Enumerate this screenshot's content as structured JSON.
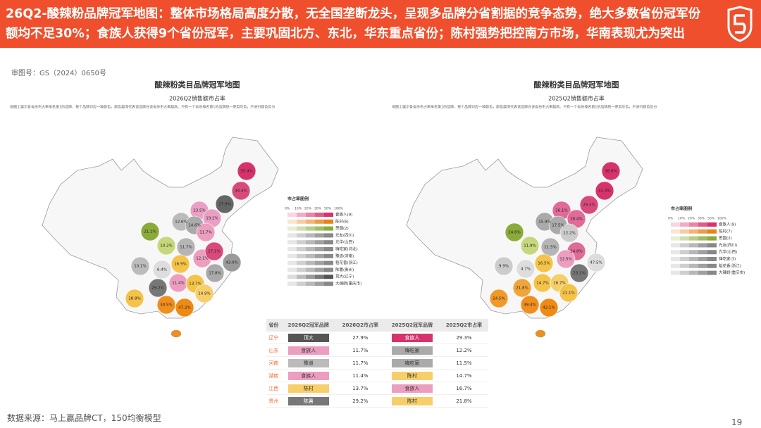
{
  "header": {
    "title": "26Q2-酸辣粉品牌冠军地图：整体市场格局高度分散，无全国垄断龙头，呈现多品牌分省割据的竞争态势，绝大多数省份冠军份额均不足30%；食族人获得9个省份冠军，主要巩固北方、东北，华东重点省份；陈村强势把控南方市场，华南表现尤为突出"
  },
  "review_no": "审图号：GS（2024）0650号",
  "left_map": {
    "title": "酸辣粉类目品牌冠军地图",
    "subtitle": "2026Q2销售额市占率",
    "note": "地图上展示各省份市占率排名第1的品牌，每个品牌对应一种颜色，颜色越深代表该品牌在该省份市占率越高。只有一个省份排名第1的品牌统一使用灰色，不进行颜色区分",
    "region_labels": [
      "35.4%",
      "34.4%",
      "27.9%",
      "23.5%",
      "19.2%",
      "12.6%",
      "14.6%",
      "21.1%",
      "10.2%",
      "11.7%",
      "11.7%",
      "12.1%",
      "27.1%",
      "17.8%",
      "43.0%",
      "10.1%",
      "16.9%",
      "6.4%",
      "11.4%",
      "13.7%",
      "29.2%",
      "14.9%",
      "18.8%",
      "30.5%",
      "47.2%"
    ],
    "legend_title": "市占率图例",
    "legend_scale": [
      "0%",
      "10%",
      "20%",
      "30%",
      "50%",
      "100%"
    ],
    "legend_items": [
      "食族人(9)",
      "陈村(6)",
      "思圆(2)",
      "光友(四川)",
      "光华(山西)",
      "嗨吃家(河北)",
      "豫道(河南)",
      "稻花香(浙江)",
      "陈薯(贵州)",
      "顶大(辽宁)",
      "大辣娇(重庆市)"
    ]
  },
  "right_map": {
    "title": "酸辣粉类目品牌冠军地图",
    "subtitle": "2025Q2销售额市占率",
    "note": "地图上展示各省份市占率排名第1的品牌，每个品牌对应一种颜色，颜色越深代表该品牌在该省份市占率越高。只有一个省份排名第1的品牌统一使用灰色，不进行颜色区分",
    "region_labels": [
      "38.8%",
      "41.3%",
      "29.3%",
      "26.1%",
      "28.4%",
      "15.9%",
      "17.5%",
      "12.2%",
      "24.6%",
      "11.9%",
      "11.5%",
      "24.8%",
      "47.5%",
      "9.9%",
      "4.7%",
      "16.5%",
      "12.5%",
      "23.1%",
      "14.7%",
      "16.7%",
      "21.8%",
      "21.1%",
      "24.5%",
      "39.4%",
      "42.1%"
    ],
    "legend_title": "市占率图例",
    "legend_scale": [
      "0%",
      "10%",
      "20%",
      "30%",
      "50%",
      "100%"
    ],
    "legend_items": [
      "食族人(9)",
      "陈村(7)",
      "思圆(2)",
      "光友(四川)",
      "光华(山西)",
      "嗨吃家(3)",
      "稻花香(浙江)",
      "大辣娇(重庆市)"
    ]
  },
  "table": {
    "headers": [
      "省份",
      "2026Q2冠军品牌",
      "2026Q2市占率",
      "2025Q2冠军品牌",
      "2025Q2市占率"
    ],
    "rows": [
      [
        "辽宁",
        "顶大",
        "27.9%",
        "食族人",
        "29.3%"
      ],
      [
        "山东",
        "食族人",
        "11.7%",
        "嗨吃家",
        "12.2%"
      ],
      [
        "河南",
        "豫道",
        "11.7%",
        "嗨吃家",
        "11.5%"
      ],
      [
        "湖南",
        "食族人",
        "11.4%",
        "陈村",
        "14.7%"
      ],
      [
        "江西",
        "陈村",
        "13.7%",
        "食族人",
        "16.7%"
      ],
      [
        "贵州",
        "陈薯",
        "29.2%",
        "陈村",
        "21.8%"
      ]
    ]
  },
  "footer": {
    "source": "数据来源：马上赢品牌CT，150均衡模型",
    "page": "19"
  }
}
